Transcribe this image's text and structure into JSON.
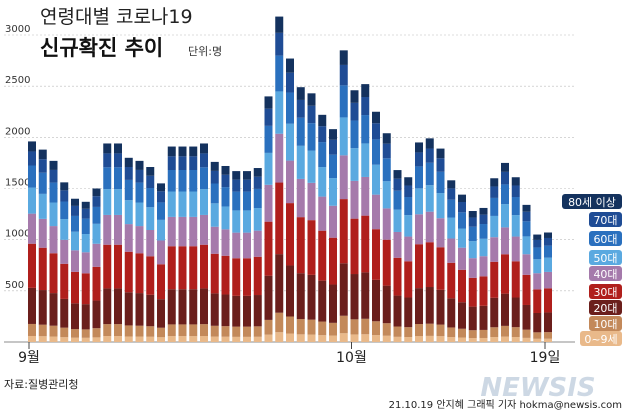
{
  "title_line1": "연령대별 코로나19",
  "title_line2": "신규확진 추이",
  "unit": "단위:명",
  "source": "자료:질병관리청",
  "credit": "21.10.19 안지혜 그래픽 기자 hokma@newsis.com",
  "watermark": "NEWSIS",
  "chart_data": {
    "type": "bar",
    "stacked": true,
    "ylim": [
      0,
      3000
    ],
    "yticks": [
      500,
      1000,
      1500,
      2000,
      2500,
      3000
    ],
    "x_labels": [
      {
        "index": 0,
        "label": "9월"
      },
      {
        "index": 30,
        "label": "10월"
      },
      {
        "index": 48,
        "label": "19일"
      }
    ],
    "series": [
      {
        "name": "0~9세",
        "color": "#e9b98a"
      },
      {
        "name": "10대",
        "color": "#c3895a"
      },
      {
        "name": "20대",
        "color": "#6b1f1c"
      },
      {
        "name": "30대",
        "color": "#b01f1c"
      },
      {
        "name": "40대",
        "color": "#a57aab"
      },
      {
        "name": "50대",
        "color": "#5aa9e0"
      },
      {
        "name": "60대",
        "color": "#2a70be"
      },
      {
        "name": "70대",
        "color": "#1f4c95"
      },
      {
        "name": "80세 이상",
        "color": "#14325e"
      }
    ],
    "totals": [
      1960,
      1880,
      1770,
      1560,
      1400,
      1370,
      1500,
      1940,
      1940,
      1800,
      1770,
      1710,
      1550,
      1910,
      1910,
      1910,
      1940,
      1760,
      1720,
      1670,
      1670,
      1700,
      2400,
      3180,
      2770,
      2490,
      2430,
      2220,
      2080,
      2850,
      2460,
      2520,
      2250,
      2040,
      1680,
      1610,
      1950,
      1990,
      1890,
      1580,
      1440,
      1280,
      1310,
      1600,
      1750,
      1610,
      1340,
      1050,
      1070
    ]
  }
}
